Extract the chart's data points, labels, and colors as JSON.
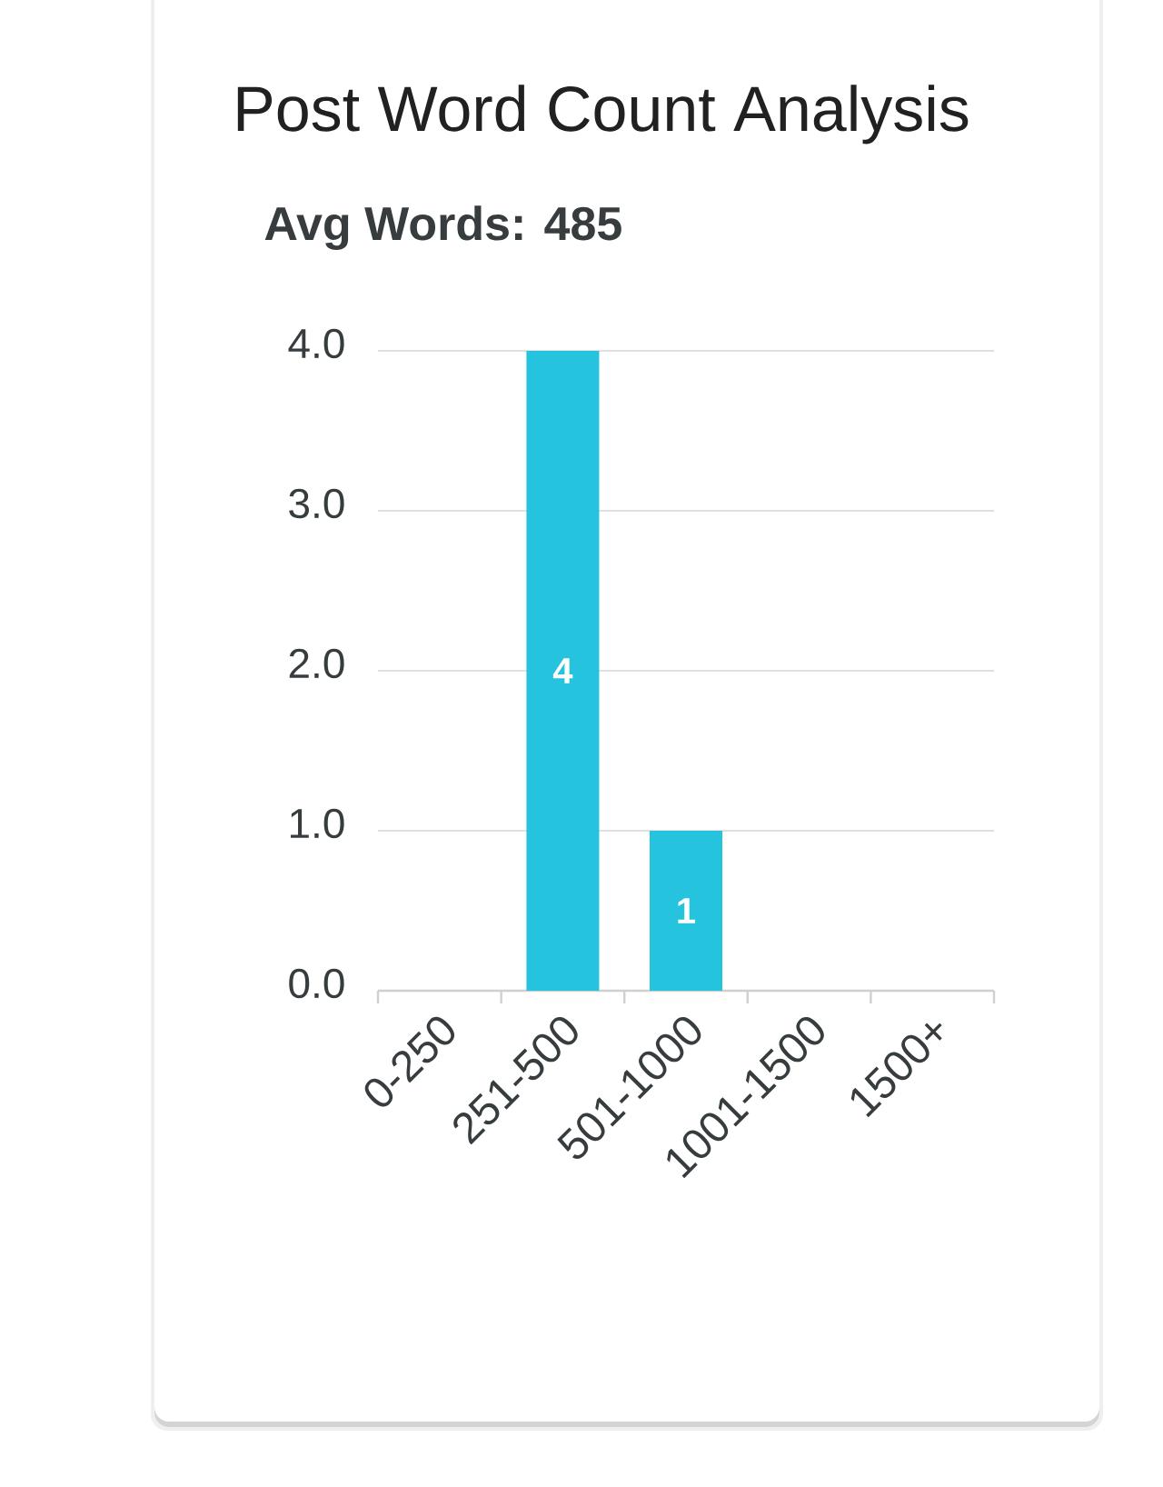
{
  "chart_data": {
    "type": "bar",
    "title": "Post Word Count Analysis",
    "subtitle": "Avg Words: 485",
    "categories": [
      "0-250",
      "251-500",
      "501-1000",
      "1001-1500",
      "1500+"
    ],
    "values": [
      0,
      4,
      1,
      0,
      0
    ],
    "color": "#26c3df",
    "value_labels": [
      null,
      "4",
      "1",
      null,
      null
    ],
    "ylim": [
      0,
      4
    ],
    "yticks": [
      {
        "value": 0,
        "label": "0.0"
      },
      {
        "value": 1,
        "label": "1.0"
      },
      {
        "value": 2,
        "label": "2.0"
      },
      {
        "value": 3,
        "label": "3.0"
      },
      {
        "value": 4,
        "label": "4.0"
      }
    ],
    "grid": "y"
  }
}
